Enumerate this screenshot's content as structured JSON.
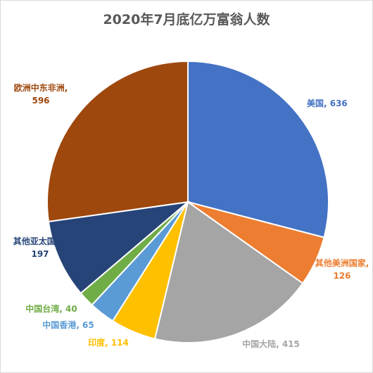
{
  "chart_data": {
    "type": "pie",
    "title": "2020年7月底亿万富翁人数",
    "label_separator": ", ",
    "slices": [
      {
        "name": "美国",
        "value": 636,
        "color": "#4472C4"
      },
      {
        "name": "其他美洲国家",
        "value": 126,
        "color": "#ED7D31"
      },
      {
        "name": "中国大陆",
        "value": 415,
        "color": "#A5A5A5"
      },
      {
        "name": "印度",
        "value": 114,
        "color": "#FFC000"
      },
      {
        "name": "中国香港",
        "value": 65,
        "color": "#5B9BD5"
      },
      {
        "name": "中国台湾",
        "value": 40,
        "color": "#70AD47"
      },
      {
        "name": "其他亚太国家",
        "value": 197,
        "color": "#264478"
      },
      {
        "name": "欧洲中东非洲",
        "value": 596,
        "color": "#9E480E"
      }
    ],
    "legend": "none"
  }
}
